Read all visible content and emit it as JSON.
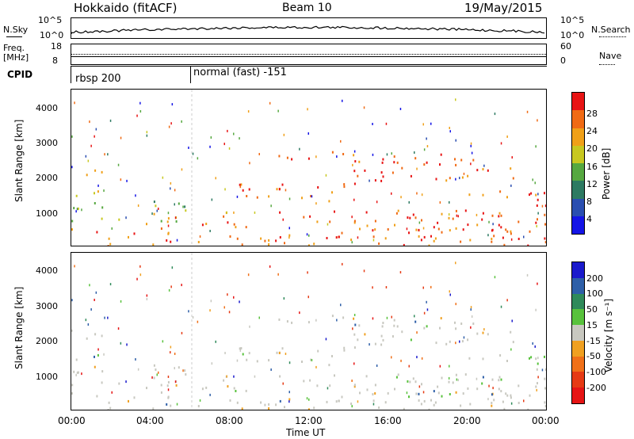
{
  "header": {
    "radar": "Hokkaido (fitACF)",
    "beam": "Beam 10",
    "date": "19/May/2015"
  },
  "top_panels": {
    "nsky_label": "N.Sky",
    "nsky_ticks": [
      "10^5",
      "10^0"
    ],
    "nsearch_label": "N.Search",
    "nsearch_ticks": [
      "10^5",
      "10^0"
    ],
    "freq_label_1": "Freq.",
    "freq_label_2": "[MHz]",
    "freq_ticks": [
      "18",
      "8"
    ],
    "nave_label": "Nave",
    "nave_ticks": [
      "60",
      "0"
    ],
    "cpid_label": "CPID",
    "cpid_segments": [
      "rbsp 200",
      "normal (fast) -151"
    ]
  },
  "chart_data": [
    {
      "type": "heatmap",
      "name": "power",
      "ylabel": "Slant Range [km]",
      "xlabel": "",
      "ylim": [
        180,
        4500
      ],
      "y_ticks": [
        "1000",
        "2000",
        "3000",
        "4000"
      ],
      "x_ticks": [
        "00:00",
        "04:00",
        "08:00",
        "12:00",
        "16:00",
        "20:00",
        "00:00"
      ],
      "colorbar": {
        "label": "Power [dB]",
        "range": [
          0,
          32
        ],
        "ticks": [
          "4",
          "8",
          "12",
          "16",
          "20",
          "24",
          "28"
        ],
        "colors": [
          "#1414e6",
          "#2a4eb0",
          "#2d7a62",
          "#56a840",
          "#c8c820",
          "#f0a018",
          "#f06a14",
          "#e81414"
        ]
      }
    },
    {
      "type": "heatmap",
      "name": "velocity",
      "ylabel": "Slant Range [km]",
      "xlabel": "Time UT",
      "ylim": [
        180,
        4500
      ],
      "y_ticks": [
        "1000",
        "2000",
        "3000",
        "4000"
      ],
      "x_ticks": [
        "00:00",
        "04:00",
        "08:00",
        "12:00",
        "16:00",
        "20:00",
        "00:00"
      ],
      "colorbar": {
        "label": "Velocity [m s⁻¹]",
        "range": [
          -250,
          250
        ],
        "ticks": [
          "200",
          "100",
          "50",
          "15",
          "-15",
          "-50",
          "-100",
          "-200"
        ],
        "colors": [
          "#1a1acc",
          "#2e5fa8",
          "#2f8a5a",
          "#58c23c",
          "#c8c8c0",
          "#f0a020",
          "#f07018",
          "#e63a14",
          "#e61414"
        ]
      }
    }
  ]
}
